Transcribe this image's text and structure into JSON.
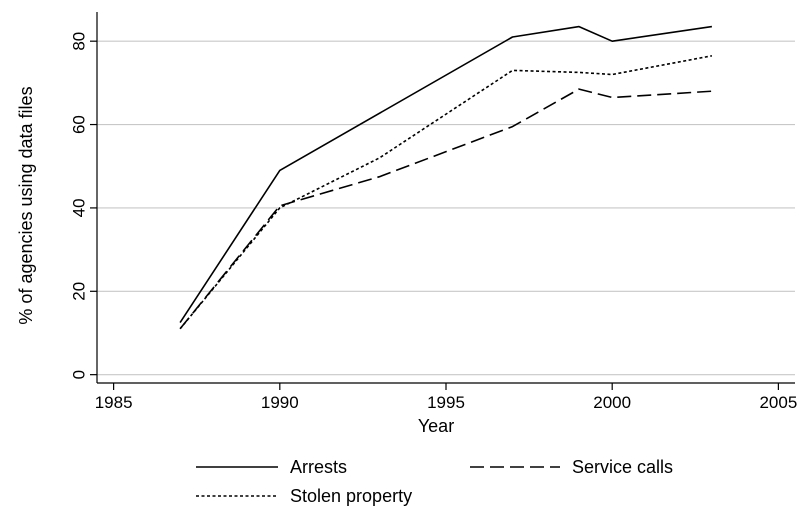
{
  "chart_data": {
    "type": "line",
    "title": "",
    "xlabel": "Year",
    "ylabel": "% of agencies using data files",
    "xlim": [
      1984.5,
      2005.5
    ],
    "ylim": [
      -2,
      87
    ],
    "xticks": [
      1985,
      1990,
      1995,
      2000,
      2005
    ],
    "yticks": [
      0,
      20,
      40,
      60,
      80
    ],
    "grid": "horizontal",
    "legend_position": "bottom",
    "series": [
      {
        "name": "Arrests",
        "style": "solid",
        "x": [
          1987,
          1990,
          1997,
          1999,
          2000,
          2003
        ],
        "y": [
          12.5,
          49,
          81,
          83.5,
          80,
          83.5
        ]
      },
      {
        "name": "Service calls",
        "style": "dashed",
        "x": [
          1987,
          1990,
          1993,
          1997,
          1999,
          2000,
          2003
        ],
        "y": [
          11,
          40.5,
          47.5,
          59.5,
          68.5,
          66.5,
          68
        ]
      },
      {
        "name": "Stolen property",
        "style": "dotted",
        "x": [
          1987,
          1990,
          1993,
          1997,
          1999,
          2000,
          2003
        ],
        "y": [
          11,
          40,
          52,
          73,
          72.5,
          72,
          76.5
        ]
      }
    ]
  }
}
